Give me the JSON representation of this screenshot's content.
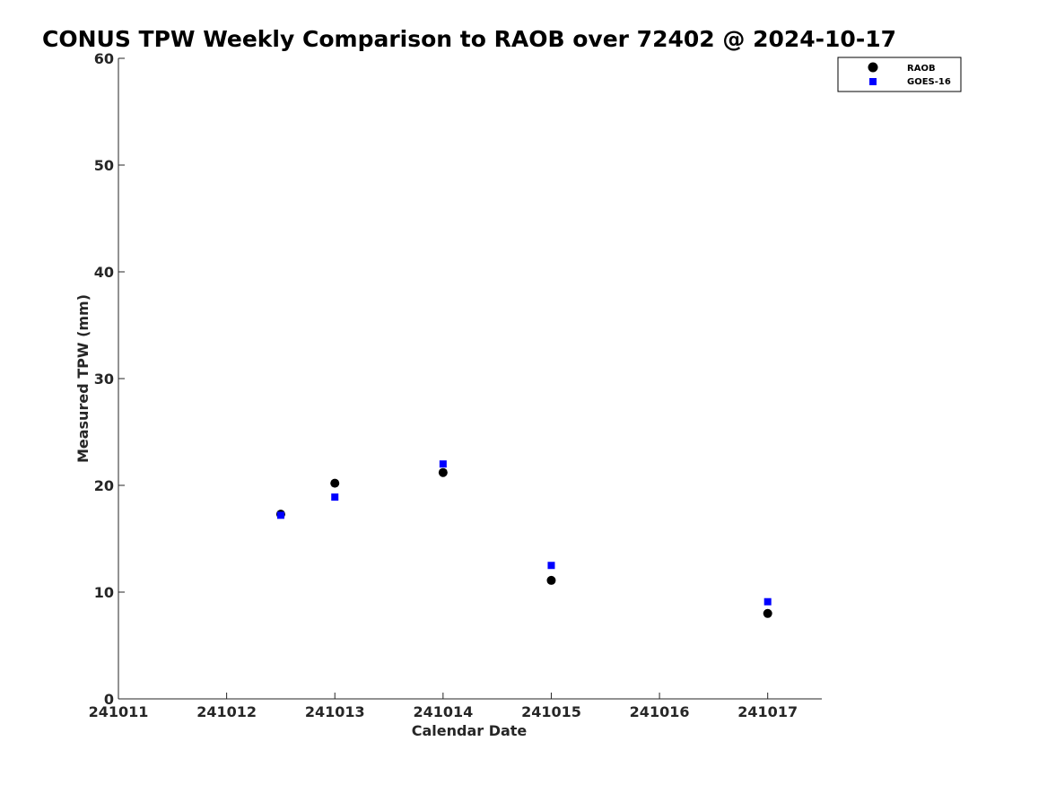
{
  "chart_data": {
    "type": "scatter",
    "title": "CONUS TPW Weekly Comparison to RAOB over 72402 @ 2024-10-17",
    "xlabel": "Calendar Date",
    "ylabel": "Measured TPW (mm)",
    "xlim": [
      241011,
      241017.5
    ],
    "ylim": [
      0,
      60
    ],
    "x_ticks": [
      "241011",
      "241012",
      "241013",
      "241014",
      "241015",
      "241016",
      "241017"
    ],
    "y_ticks": [
      "0",
      "10",
      "20",
      "30",
      "40",
      "50",
      "60"
    ],
    "grid": false,
    "legend_position": "top-right",
    "series": [
      {
        "name": "RAOB",
        "marker": "circle",
        "color": "#000000",
        "points": [
          {
            "x": 241012.5,
            "y": 17.3
          },
          {
            "x": 241013,
            "y": 20.2
          },
          {
            "x": 241014,
            "y": 21.2
          },
          {
            "x": 241015,
            "y": 11.1
          },
          {
            "x": 241017,
            "y": 8.0
          }
        ]
      },
      {
        "name": "GOES-16",
        "marker": "square",
        "color": "#0000ff",
        "points": [
          {
            "x": 241012.5,
            "y": 17.2
          },
          {
            "x": 241013,
            "y": 18.9
          },
          {
            "x": 241014,
            "y": 22.0
          },
          {
            "x": 241015,
            "y": 12.5
          },
          {
            "x": 241017,
            "y": 9.1
          }
        ]
      }
    ]
  }
}
